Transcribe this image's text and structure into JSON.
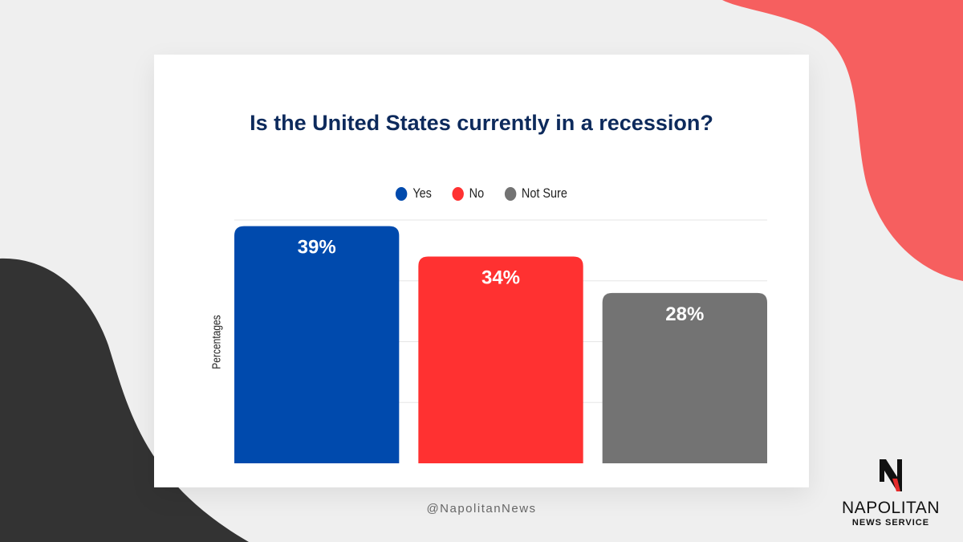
{
  "colors": {
    "yes": "#004aad",
    "no": "#ff3131",
    "not_sure": "#737373",
    "title": "#0d2a5c",
    "blob_red": "#f65f5f",
    "blob_dark": "#333333"
  },
  "chart_data": {
    "type": "bar",
    "title": "Is the United States currently in a recession?",
    "categories": [
      "Yes",
      "No",
      "Not Sure"
    ],
    "values": [
      39,
      34,
      28
    ],
    "data_labels": [
      "39%",
      "34%",
      "28%"
    ],
    "legend": [
      "Yes",
      "No",
      "Not Sure"
    ],
    "legend_placement": "top-center",
    "xlabel": "",
    "ylabel": "Percentages",
    "ylim": [
      0,
      40
    ],
    "grid": true
  },
  "footer": {
    "handle": "@NapolitanNews"
  },
  "logo": {
    "letter": "N",
    "name": "NAPOLITAN",
    "sub": "NEWS SERVICE"
  }
}
